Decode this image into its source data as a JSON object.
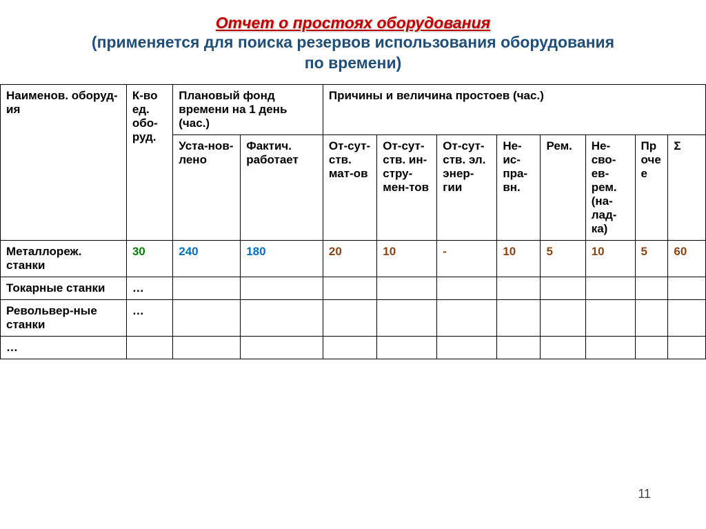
{
  "title": "Отчет о простоях оборудования",
  "subtitle_line1": "(применяется для поиска резервов использования оборудования",
  "subtitle_line2": "по времени)",
  "header": {
    "col_name": "Наименов. оборуд-ия",
    "col_qty": "К-во ед. обо-руд.",
    "col_fund": "Плановый фонд времени\nна 1 день (час.)",
    "col_reasons": "Причины и величина простоев (час.)",
    "sub_ust": "Уста-нов-лено",
    "sub_fact": "Фактич. работает",
    "sub_r1": "От-сут-ств. мат-ов",
    "sub_r2": "От-сут-ств. ин-стру-мен-тов",
    "sub_r3": "От-сут-ств. эл. энер-гии",
    "sub_r4": "Не-ис-пра-вн.",
    "sub_r5": "Рем.",
    "sub_r6": "Не-сво-ев-рем. (на-лад-ка)",
    "sub_r7": "Прочее",
    "sub_sum": "Σ"
  },
  "rows": [
    {
      "name": "Металлореж. станки",
      "qty": "30",
      "ust": "240",
      "fact": "180",
      "r1": "20",
      "r2": "10",
      "r3": "-",
      "r4": "10",
      "r5": "5",
      "r6": "10",
      "r7": "5",
      "sum": "60"
    },
    {
      "name": "Токарные станки",
      "qty": "…",
      "ust": "",
      "fact": "",
      "r1": "",
      "r2": "",
      "r3": "",
      "r4": "",
      "r5": "",
      "r6": "",
      "r7": "",
      "sum": ""
    },
    {
      "name": "Револьвер-ные станки",
      "qty": "…",
      "ust": "",
      "fact": "",
      "r1": "",
      "r2": "",
      "r3": "",
      "r4": "",
      "r5": "",
      "r6": "",
      "r7": "",
      "sum": ""
    },
    {
      "name": "…",
      "qty": "",
      "ust": "",
      "fact": "",
      "r1": "",
      "r2": "",
      "r3": "",
      "r4": "",
      "r5": "",
      "r6": "",
      "r7": "",
      "sum": ""
    }
  ],
  "page_number": "11",
  "colors": {
    "title": "#c00000",
    "subtitle": "#1f4e79",
    "green": "#008000",
    "blue": "#0070c0",
    "brown": "#8b4513"
  }
}
